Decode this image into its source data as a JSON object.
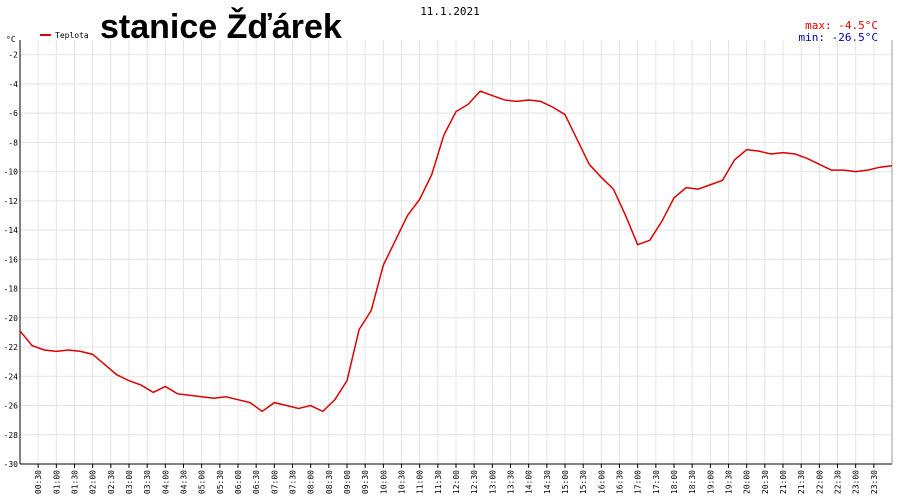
{
  "chart_data": {
    "type": "line",
    "title": "stanice Žďárek",
    "date": "11.1.2021",
    "y_unit": "°C",
    "max_label": "max: -4.5°C",
    "min_label": "min: -26.5°C",
    "xlim": [
      0,
      1440
    ],
    "ylim": [
      -30,
      -1
    ],
    "yticks": [
      -30,
      -28,
      -26,
      -24,
      -22,
      -20,
      -18,
      -16,
      -14,
      -12,
      -10,
      -8,
      -6,
      -4,
      -2
    ],
    "xticks": [
      {
        "value": 30,
        "label": "00:30"
      },
      {
        "value": 60,
        "label": "01:00"
      },
      {
        "value": 90,
        "label": "01:30"
      },
      {
        "value": 120,
        "label": "02:00"
      },
      {
        "value": 150,
        "label": "02:30"
      },
      {
        "value": 180,
        "label": "03:00"
      },
      {
        "value": 210,
        "label": "03:30"
      },
      {
        "value": 240,
        "label": "04:00"
      },
      {
        "value": 270,
        "label": "04:30"
      },
      {
        "value": 300,
        "label": "05:00"
      },
      {
        "value": 330,
        "label": "05:30"
      },
      {
        "value": 360,
        "label": "06:00"
      },
      {
        "value": 390,
        "label": "06:30"
      },
      {
        "value": 420,
        "label": "07:00"
      },
      {
        "value": 450,
        "label": "07:30"
      },
      {
        "value": 480,
        "label": "08:00"
      },
      {
        "value": 510,
        "label": "08:30"
      },
      {
        "value": 540,
        "label": "09:00"
      },
      {
        "value": 570,
        "label": "09:30"
      },
      {
        "value": 600,
        "label": "10:00"
      },
      {
        "value": 630,
        "label": "10:30"
      },
      {
        "value": 660,
        "label": "11:00"
      },
      {
        "value": 690,
        "label": "11:30"
      },
      {
        "value": 720,
        "label": "12:00"
      },
      {
        "value": 750,
        "label": "12:30"
      },
      {
        "value": 780,
        "label": "13:00"
      },
      {
        "value": 810,
        "label": "13:30"
      },
      {
        "value": 840,
        "label": "14:00"
      },
      {
        "value": 870,
        "label": "14:30"
      },
      {
        "value": 900,
        "label": "15:00"
      },
      {
        "value": 930,
        "label": "15:30"
      },
      {
        "value": 960,
        "label": "16:00"
      },
      {
        "value": 990,
        "label": "16:30"
      },
      {
        "value": 1020,
        "label": "17:00"
      },
      {
        "value": 1050,
        "label": "17:30"
      },
      {
        "value": 1080,
        "label": "18:00"
      },
      {
        "value": 1110,
        "label": "18:30"
      },
      {
        "value": 1140,
        "label": "19:00"
      },
      {
        "value": 1170,
        "label": "19:30"
      },
      {
        "value": 1200,
        "label": "20:00"
      },
      {
        "value": 1230,
        "label": "20:30"
      },
      {
        "value": 1260,
        "label": "21:00"
      },
      {
        "value": 1290,
        "label": "21:30"
      },
      {
        "value": 1320,
        "label": "22:00"
      },
      {
        "value": 1350,
        "label": "22:30"
      },
      {
        "value": 1380,
        "label": "23:00"
      },
      {
        "value": 1410,
        "label": "23:30"
      }
    ],
    "grid": true,
    "x": [
      0,
      20,
      40,
      60,
      80,
      100,
      120,
      140,
      160,
      180,
      200,
      220,
      240,
      260,
      280,
      300,
      320,
      340,
      360,
      380,
      400,
      420,
      440,
      460,
      480,
      500,
      520,
      540,
      560,
      580,
      600,
      620,
      640,
      660,
      680,
      700,
      720,
      740,
      760,
      780,
      800,
      820,
      840,
      860,
      880,
      900,
      920,
      940,
      960,
      980,
      1000,
      1020,
      1040,
      1060,
      1080,
      1100,
      1120,
      1140,
      1160,
      1180,
      1200,
      1220,
      1240,
      1260,
      1280,
      1300,
      1320,
      1340,
      1360,
      1380,
      1400,
      1420,
      1440
    ],
    "series": [
      {
        "name": "Teplota",
        "color": "#dd0000",
        "values": [
          -20.9,
          -21.9,
          -22.2,
          -22.3,
          -22.2,
          -22.3,
          -22.5,
          -23.2,
          -23.9,
          -24.3,
          -24.6,
          -25.1,
          -24.7,
          -25.2,
          -25.3,
          -25.4,
          -25.5,
          -25.4,
          -25.6,
          -25.8,
          -26.4,
          -25.8,
          -26.0,
          -26.2,
          -26.0,
          -26.4,
          -25.6,
          -24.3,
          -20.8,
          -19.5,
          -16.4,
          -14.7,
          -13.0,
          -11.9,
          -10.2,
          -7.5,
          -5.9,
          -5.4,
          -4.5,
          -4.8,
          -5.1,
          -5.2,
          -5.1,
          -5.2,
          -5.6,
          -6.1,
          -7.8,
          -9.5,
          -10.4,
          -11.2,
          -13.0,
          -15.0,
          -14.7,
          -13.4,
          -11.8,
          -11.1,
          -11.2,
          -10.9,
          -10.6,
          -9.2,
          -8.5,
          -8.6,
          -8.8,
          -8.7,
          -8.8,
          -9.1,
          -9.5,
          -9.9,
          -9.9,
          -10.0,
          -9.9,
          -9.7,
          -9.6
        ]
      }
    ]
  }
}
